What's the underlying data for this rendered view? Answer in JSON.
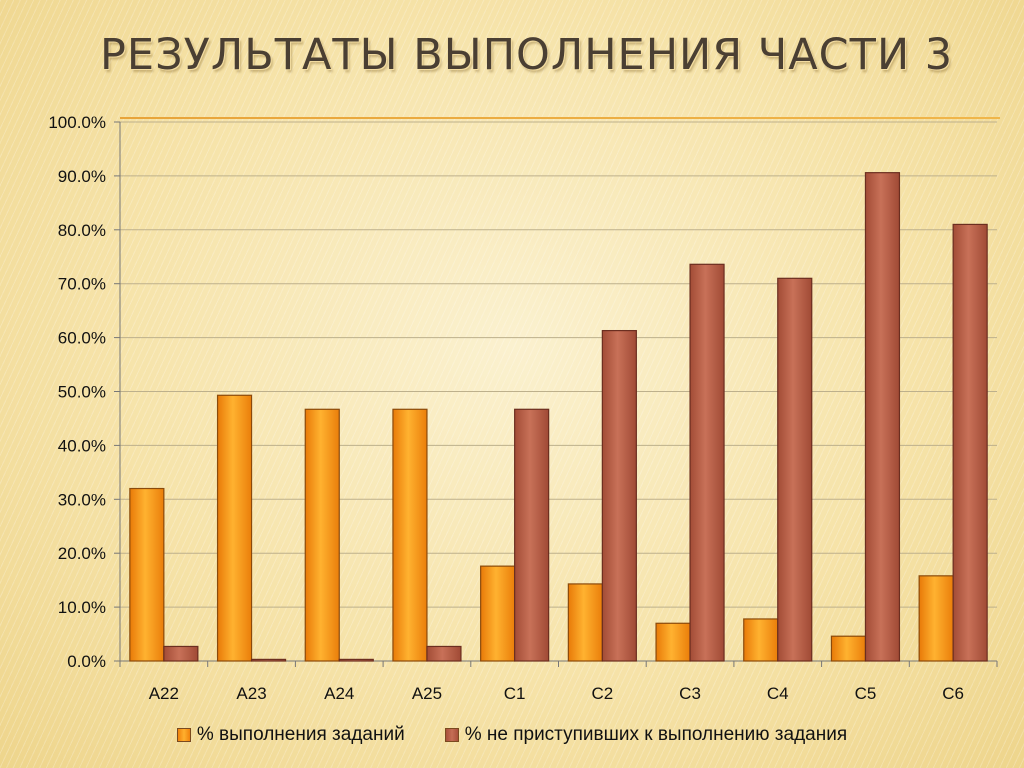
{
  "slide": {
    "title": "РЕЗУЛЬТАТЫ ВЫПОЛНЕНИЯ ЧАСТИ 3"
  },
  "chart_data": {
    "type": "bar",
    "categories": [
      "A22",
      "A23",
      "A24",
      "A25",
      "C1",
      "C2",
      "C3",
      "C4",
      "C5",
      "C6"
    ],
    "series": [
      {
        "name": "% выполнения заданий",
        "color": "#f5901a",
        "values": [
          32.0,
          49.3,
          46.7,
          46.7,
          17.6,
          14.3,
          7.0,
          7.8,
          4.6,
          15.8
        ]
      },
      {
        "name": "% не приступивших к выполнению  задания",
        "color": "#b45f47",
        "values": [
          2.7,
          0.3,
          0.3,
          2.7,
          46.7,
          61.3,
          73.6,
          71.0,
          90.6,
          81.0
        ]
      }
    ],
    "yticks": [
      "0.0%",
      "10.0%",
      "20.0%",
      "30.0%",
      "40.0%",
      "50.0%",
      "60.0%",
      "70.0%",
      "80.0%",
      "90.0%",
      "100.0%"
    ],
    "ylim": [
      0,
      100
    ],
    "grid": true,
    "legend_position": "bottom",
    "title": "",
    "xlabel": "",
    "ylabel": ""
  }
}
